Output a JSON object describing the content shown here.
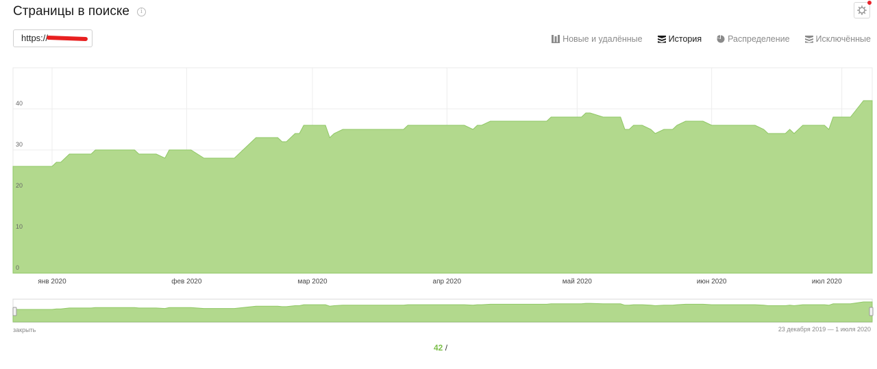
{
  "header": {
    "title": "Страницы в поиске",
    "info_icon": "info-circle-icon",
    "settings_icon": "gear-icon",
    "notification_color": "#e8232a"
  },
  "url_select": {
    "value": "https://"
  },
  "tabs": [
    {
      "label": "Новые и удалённые",
      "icon": "bars-icon",
      "active": false
    },
    {
      "label": "История",
      "icon": "stack-icon",
      "active": true
    },
    {
      "label": "Распределение",
      "icon": "pie-icon",
      "active": false
    },
    {
      "label": "Исключённые",
      "icon": "stack-icon",
      "active": false
    }
  ],
  "chart_data": {
    "type": "area",
    "color": "#b2d98d",
    "line_color": "#8fc765",
    "ylim": [
      0,
      50
    ],
    "yticks": [
      0,
      10,
      20,
      30,
      40
    ],
    "grid": true,
    "x_range": [
      "2019-12-23",
      "2020-07-01"
    ],
    "xticks": [
      {
        "date": "2020-01-01",
        "label": "янв 2020"
      },
      {
        "date": "2020-02-01",
        "label": "фев 2020"
      },
      {
        "date": "2020-03-01",
        "label": "мар 2020"
      },
      {
        "date": "2020-04-01",
        "label": "апр 2020"
      },
      {
        "date": "2020-05-01",
        "label": "май 2020"
      },
      {
        "date": "2020-06-01",
        "label": "июн 2020"
      },
      {
        "date": "2020-07-01",
        "label": "июл 2020"
      }
    ],
    "points": [
      [
        "2019-12-23",
        26
      ],
      [
        "2020-01-01",
        26
      ],
      [
        "2020-01-02",
        27
      ],
      [
        "2020-01-03",
        27
      ],
      [
        "2020-01-05",
        29
      ],
      [
        "2020-01-10",
        29
      ],
      [
        "2020-01-11",
        30
      ],
      [
        "2020-01-20",
        30
      ],
      [
        "2020-01-21",
        29
      ],
      [
        "2020-01-25",
        29
      ],
      [
        "2020-01-27",
        28
      ],
      [
        "2020-01-28",
        30
      ],
      [
        "2020-02-02",
        30
      ],
      [
        "2020-02-05",
        28
      ],
      [
        "2020-02-08",
        28
      ],
      [
        "2020-02-12",
        28
      ],
      [
        "2020-02-14",
        30
      ],
      [
        "2020-02-17",
        33
      ],
      [
        "2020-02-22",
        33
      ],
      [
        "2020-02-23",
        32
      ],
      [
        "2020-02-24",
        32
      ],
      [
        "2020-02-26",
        34
      ],
      [
        "2020-02-27",
        34
      ],
      [
        "2020-02-28",
        36
      ],
      [
        "2020-03-04",
        36
      ],
      [
        "2020-03-05",
        33
      ],
      [
        "2020-03-06",
        34
      ],
      [
        "2020-03-08",
        35
      ],
      [
        "2020-03-13",
        35
      ],
      [
        "2020-03-22",
        35
      ],
      [
        "2020-03-23",
        36
      ],
      [
        "2020-03-31",
        36
      ],
      [
        "2020-04-05",
        36
      ],
      [
        "2020-04-07",
        35
      ],
      [
        "2020-04-08",
        36
      ],
      [
        "2020-04-09",
        36
      ],
      [
        "2020-04-11",
        37
      ],
      [
        "2020-04-24",
        37
      ],
      [
        "2020-04-25",
        38
      ],
      [
        "2020-05-02",
        38
      ],
      [
        "2020-05-03",
        39
      ],
      [
        "2020-05-04",
        39
      ],
      [
        "2020-05-07",
        38
      ],
      [
        "2020-05-11",
        38
      ],
      [
        "2020-05-12",
        35
      ],
      [
        "2020-05-13",
        35
      ],
      [
        "2020-05-14",
        36
      ],
      [
        "2020-05-16",
        36
      ],
      [
        "2020-05-18",
        35
      ],
      [
        "2020-05-19",
        34
      ],
      [
        "2020-05-21",
        35
      ],
      [
        "2020-05-23",
        35
      ],
      [
        "2020-05-24",
        36
      ],
      [
        "2020-05-26",
        37
      ],
      [
        "2020-05-30",
        37
      ],
      [
        "2020-06-01",
        36
      ],
      [
        "2020-06-11",
        36
      ],
      [
        "2020-06-13",
        35
      ],
      [
        "2020-06-14",
        34
      ],
      [
        "2020-06-18",
        34
      ],
      [
        "2020-06-19",
        35
      ],
      [
        "2020-06-20",
        34
      ],
      [
        "2020-06-22",
        36
      ],
      [
        "2020-06-27",
        36
      ],
      [
        "2020-06-28",
        35
      ],
      [
        "2020-06-29",
        38
      ],
      [
        "2020-07-03",
        38
      ],
      [
        "2020-07-06",
        42
      ],
      [
        "2020-07-08",
        42
      ]
    ]
  },
  "navigator": {
    "close_label": "закрыть",
    "range_label": "23 декабря 2019 — 1 июля 2020"
  },
  "summary": {
    "value": "42",
    "separator": "/"
  }
}
